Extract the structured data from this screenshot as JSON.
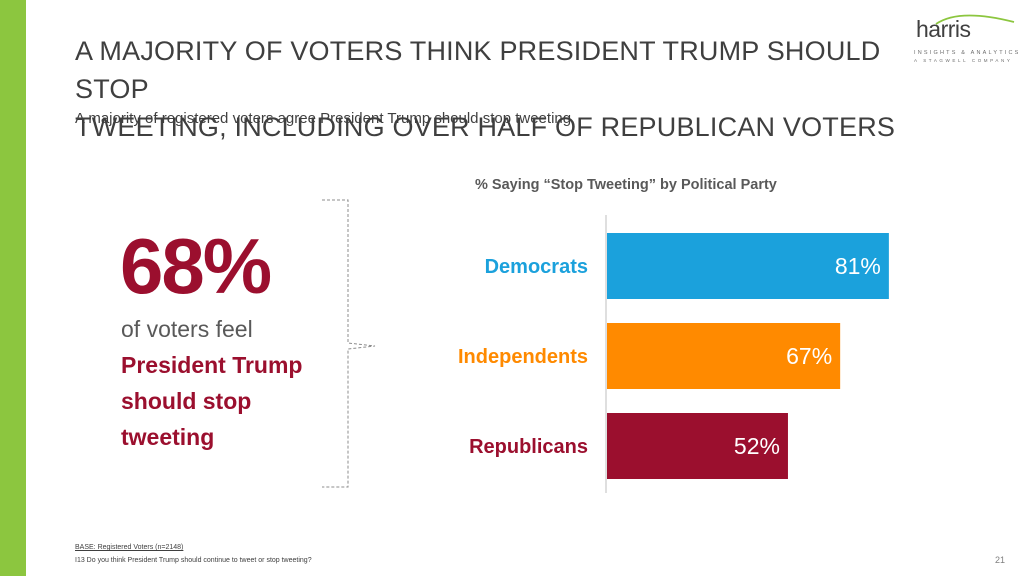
{
  "colors": {
    "accent": "#8cc63f",
    "democrats": "#1ba1dc",
    "independents": "#ff8a00",
    "republicans": "#9b0f2e",
    "highlight": "#9b0f2e"
  },
  "header": {
    "title_line1": "A MAJORITY OF VOTERS THINK PRESIDENT TRUMP SHOULD STOP",
    "title_line2": "TWEETING, INCLUDING OVER HALF OF REPUBLICAN VOTERS",
    "subtitle": "A majority of registered voters agree President Trump should stop tweeting"
  },
  "logo": {
    "word": "harris",
    "line1": "INSIGHTS & ANALYTICS",
    "line2": "A STAGWELL COMPANY"
  },
  "callout": {
    "stat": "68%",
    "line1": "of voters feel",
    "line2": "President Trump",
    "line3": "should stop",
    "line4": "tweeting"
  },
  "chart_data": {
    "type": "bar",
    "orientation": "horizontal",
    "title": "% Saying “Stop Tweeting” by Political Party",
    "categories": [
      "Democrats",
      "Independents",
      "Republicans"
    ],
    "values": [
      81,
      67,
      52
    ],
    "value_labels": [
      "81%",
      "67%",
      "52%"
    ],
    "colors": [
      "#1ba1dc",
      "#ff8a00",
      "#9b0f2e"
    ],
    "xlim": [
      0,
      100
    ],
    "xlabel": "",
    "ylabel": ""
  },
  "footer": {
    "base": "BASE: Registered Voters (n=2148)",
    "question": "I13 Do you think President Trump should continue to tweet or stop tweeting?",
    "page_number": "21"
  }
}
